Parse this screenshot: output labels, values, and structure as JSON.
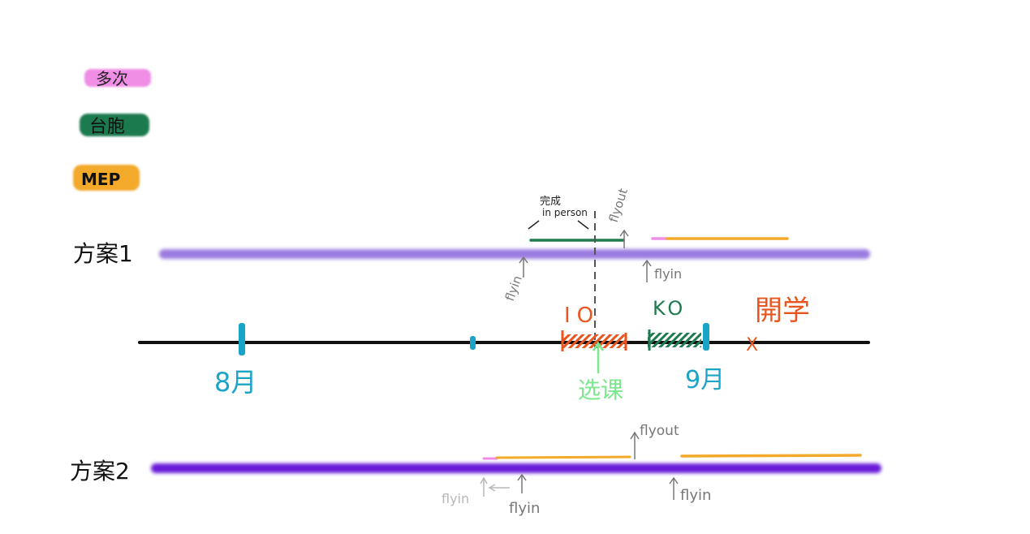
{
  "legend": [
    {
      "label": "多次",
      "color": "#f08ee6"
    },
    {
      "label": "台胞",
      "color": "#1f7a4f"
    },
    {
      "label": "MEP",
      "color": "#f3a92a"
    }
  ],
  "plan1": {
    "label": "方案1",
    "bar_color": "#9b7be0",
    "annotations": {
      "complete_in_person": "完成\nin person",
      "flyout": "flyout",
      "flyin_left": "flyin",
      "flyin_right": "flyin"
    }
  },
  "timeline": {
    "month_aug": "8月",
    "month_sep": "9月",
    "io": "IO",
    "ko": "KO",
    "school_start": "開学",
    "course_select": "选课",
    "marker_color": "#1aa5c8"
  },
  "plan2": {
    "label": "方案2",
    "bar_color": "#6a1fd8",
    "annotations": {
      "flyout": "flyout",
      "flyin_gray": "flyin",
      "flyin_left": "flyin",
      "flyin_right": "flyin"
    }
  }
}
